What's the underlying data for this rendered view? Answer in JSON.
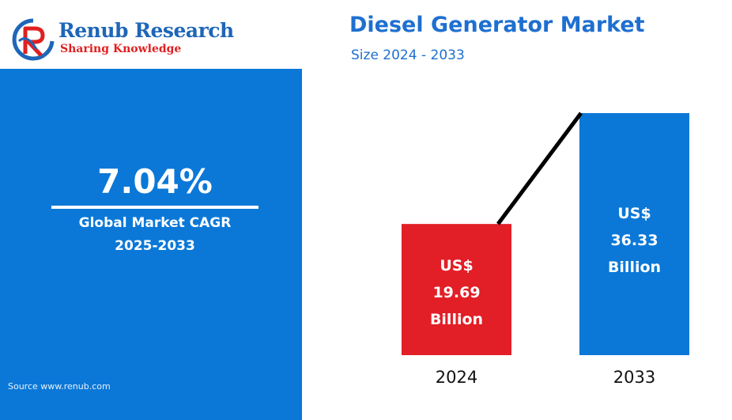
{
  "brand": {
    "name": "Renub Research",
    "tagline": "Sharing Knowledge"
  },
  "header": {
    "title": "Diesel Generator Market",
    "subtitle": "Size 2024 - 2033"
  },
  "kpi": {
    "value": "7.04%",
    "label_line1": "Global Market CAGR",
    "label_line2": "2025-2033",
    "source": "Source  www.renub.com"
  },
  "colors": {
    "panel_blue": "#0b78d8",
    "bar_2024": "#e21e26",
    "bar_2033": "#0b78d8",
    "title_blue": "#1e6fd0"
  },
  "chart_data": {
    "type": "bar",
    "categories": [
      "2024",
      "2033"
    ],
    "values": [
      19.69,
      36.33
    ],
    "unit_prefix": "US$",
    "unit_suffix": "Billion",
    "bar_labels": [
      [
        "US$",
        "19.69",
        "Billion"
      ],
      [
        "US$",
        "36.33",
        "Billion"
      ]
    ],
    "bar_colors": [
      "#e21e26",
      "#0b78d8"
    ],
    "ylim": [
      0,
      36.33
    ],
    "trend_line": true,
    "grid": false
  }
}
